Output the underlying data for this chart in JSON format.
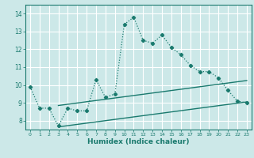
{
  "title": "",
  "xlabel": "Humidex (Indice chaleur)",
  "background_color": "#cce8e8",
  "grid_color": "#ffffff",
  "line_color": "#1a7a6e",
  "xlim": [
    -0.5,
    23.5
  ],
  "ylim": [
    7.5,
    14.5
  ],
  "yticks": [
    8,
    9,
    10,
    11,
    12,
    13,
    14
  ],
  "xticks": [
    0,
    1,
    2,
    3,
    4,
    5,
    6,
    7,
    8,
    9,
    10,
    11,
    12,
    13,
    14,
    15,
    16,
    17,
    18,
    19,
    20,
    21,
    22,
    23
  ],
  "main_x": [
    0,
    1,
    2,
    3,
    4,
    5,
    6,
    7,
    8,
    9,
    10,
    11,
    12,
    13,
    14,
    15,
    16,
    17,
    18,
    19,
    20,
    21,
    22,
    23
  ],
  "main_y": [
    9.9,
    8.7,
    8.7,
    7.7,
    8.7,
    8.55,
    8.55,
    10.3,
    9.3,
    9.5,
    13.4,
    13.8,
    12.5,
    12.35,
    12.8,
    12.1,
    11.7,
    11.1,
    10.75,
    10.75,
    10.4,
    9.7,
    9.1,
    9.0
  ],
  "trend1_x": [
    3,
    23
  ],
  "trend1_y": [
    8.85,
    10.25
  ],
  "trend2_x": [
    3,
    23
  ],
  "trend2_y": [
    7.65,
    9.05
  ]
}
